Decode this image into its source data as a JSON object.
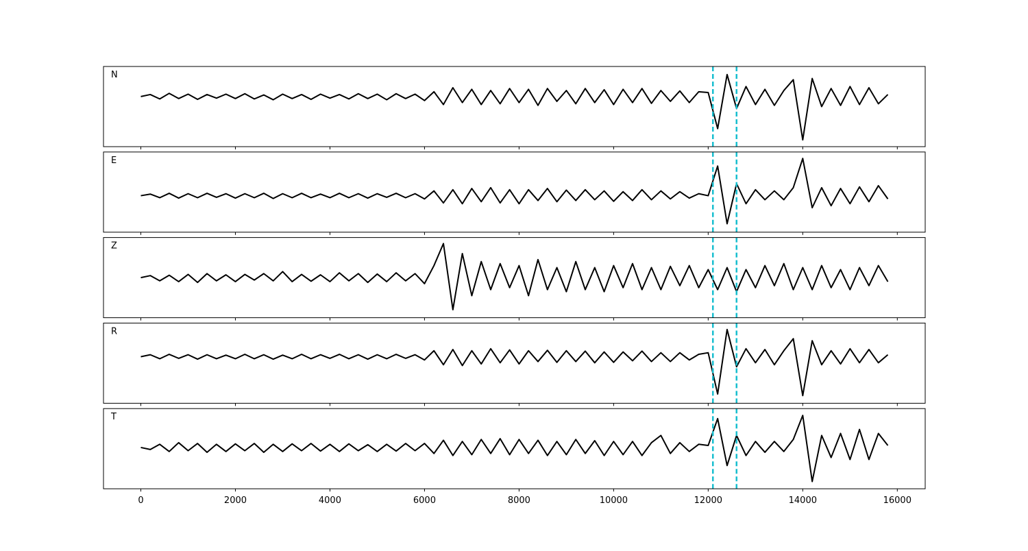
{
  "chart_data": {
    "type": "line",
    "color": "#000000",
    "xlim": [
      -790,
      16590
    ],
    "xticks": [
      0,
      2000,
      4000,
      6000,
      8000,
      10000,
      12000,
      14000,
      16000
    ],
    "markers": {
      "color": "#17becf",
      "x": [
        12100,
        12600
      ]
    },
    "x": [
      0,
      200,
      400,
      600,
      800,
      1000,
      1200,
      1400,
      1600,
      1800,
      2000,
      2200,
      2400,
      2600,
      2800,
      3000,
      3200,
      3400,
      3600,
      3800,
      4000,
      4200,
      4400,
      4600,
      4800,
      5000,
      5200,
      5400,
      5600,
      5800,
      6000,
      6200,
      6400,
      6600,
      6800,
      7000,
      7200,
      7400,
      7600,
      7800,
      8000,
      8200,
      8400,
      8600,
      8800,
      9000,
      9200,
      9400,
      9600,
      9800,
      10000,
      10200,
      10400,
      10600,
      10800,
      11000,
      11200,
      11400,
      11600,
      11800,
      12000,
      12200,
      12400,
      12600,
      12800,
      13000,
      13200,
      13400,
      13600,
      13800,
      14000,
      14200,
      14400,
      14600,
      14800,
      15000,
      15200,
      15400,
      15600,
      15800
    ],
    "series": [
      {
        "name": "N",
        "ylim": [
          -1.25,
          0.75
        ],
        "values": [
          0,
          0.05,
          -0.06,
          0.08,
          -0.05,
          0.06,
          -0.07,
          0.05,
          -0.04,
          0.06,
          -0.05,
          0.07,
          -0.06,
          0.04,
          -0.08,
          0.06,
          -0.05,
          0.05,
          -0.07,
          0.06,
          -0.04,
          0.05,
          -0.06,
          0.07,
          -0.05,
          0.06,
          -0.08,
          0.07,
          -0.05,
          0.06,
          -0.1,
          0.12,
          -0.2,
          0.22,
          -0.15,
          0.18,
          -0.2,
          0.15,
          -0.18,
          0.2,
          -0.15,
          0.18,
          -0.22,
          0.2,
          -0.12,
          0.15,
          -0.18,
          0.2,
          -0.15,
          0.17,
          -0.2,
          0.18,
          -0.15,
          0.2,
          -0.17,
          0.15,
          -0.12,
          0.14,
          -0.15,
          0.12,
          0.1,
          -0.8,
          0.55,
          -0.3,
          0.25,
          -0.2,
          0.18,
          -0.22,
          0.15,
          0.42,
          -1.08,
          0.45,
          -0.25,
          0.2,
          -0.22,
          0.25,
          -0.2,
          0.22,
          -0.18,
          0.05
        ]
      },
      {
        "name": "E",
        "ylim": [
          -0.91,
          1.09
        ],
        "values": [
          0,
          0.04,
          -0.05,
          0.06,
          -0.06,
          0.05,
          -0.05,
          0.06,
          -0.04,
          0.05,
          -0.06,
          0.05,
          -0.05,
          0.06,
          -0.07,
          0.05,
          -0.05,
          0.06,
          -0.05,
          0.04,
          -0.05,
          0.06,
          -0.05,
          0.05,
          -0.06,
          0.05,
          -0.04,
          0.06,
          -0.05,
          0.05,
          -0.08,
          0.12,
          -0.18,
          0.15,
          -0.2,
          0.18,
          -0.15,
          0.2,
          -0.18,
          0.15,
          -0.2,
          0.15,
          -0.12,
          0.18,
          -0.15,
          0.14,
          -0.12,
          0.15,
          -0.1,
          0.12,
          -0.14,
          0.1,
          -0.12,
          0.15,
          -0.1,
          0.12,
          -0.08,
          0.1,
          -0.06,
          0.05,
          0.0,
          0.74,
          -0.7,
          0.3,
          -0.2,
          0.15,
          -0.1,
          0.12,
          -0.1,
          0.2,
          0.93,
          -0.3,
          0.2,
          -0.25,
          0.18,
          -0.2,
          0.22,
          -0.15,
          0.25,
          -0.08
        ]
      },
      {
        "name": "Z",
        "ylim": [
          -1,
          1
        ],
        "values": [
          0,
          0.05,
          -0.08,
          0.06,
          -0.1,
          0.08,
          -0.12,
          0.1,
          -0.08,
          0.07,
          -0.1,
          0.08,
          -0.06,
          0.1,
          -0.08,
          0.15,
          -0.1,
          0.08,
          -0.09,
          0.07,
          -0.1,
          0.12,
          -0.08,
          0.1,
          -0.12,
          0.09,
          -0.1,
          0.12,
          -0.08,
          0.1,
          -0.15,
          0.3,
          0.85,
          -0.8,
          0.6,
          -0.45,
          0.4,
          -0.3,
          0.35,
          -0.25,
          0.3,
          -0.45,
          0.45,
          -0.3,
          0.25,
          -0.35,
          0.4,
          -0.3,
          0.25,
          -0.35,
          0.3,
          -0.25,
          0.35,
          -0.3,
          0.25,
          -0.3,
          0.28,
          -0.2,
          0.3,
          -0.25,
          0.2,
          -0.3,
          0.25,
          -0.35,
          0.2,
          -0.25,
          0.3,
          -0.2,
          0.35,
          -0.3,
          0.25,
          -0.3,
          0.3,
          -0.25,
          0.2,
          -0.3,
          0.25,
          -0.2,
          0.3,
          -0.1
        ]
      },
      {
        "name": "R",
        "ylim": [
          -1.16,
          0.84
        ],
        "values": [
          0,
          0.05,
          -0.05,
          0.06,
          -0.04,
          0.05,
          -0.06,
          0.05,
          -0.05,
          0.04,
          -0.05,
          0.06,
          -0.05,
          0.05,
          -0.06,
          0.04,
          -0.05,
          0.06,
          -0.05,
          0.05,
          -0.04,
          0.06,
          -0.05,
          0.05,
          -0.06,
          0.05,
          -0.05,
          0.06,
          -0.04,
          0.05,
          -0.08,
          0.15,
          -0.2,
          0.18,
          -0.22,
          0.15,
          -0.18,
          0.2,
          -0.15,
          0.17,
          -0.18,
          0.15,
          -0.12,
          0.16,
          -0.14,
          0.15,
          -0.12,
          0.14,
          -0.15,
          0.12,
          -0.14,
          0.12,
          -0.1,
          0.14,
          -0.12,
          0.1,
          -0.12,
          0.1,
          -0.08,
          0.06,
          0.1,
          -0.93,
          0.68,
          -0.25,
          0.2,
          -0.15,
          0.18,
          -0.2,
          0.15,
          0.45,
          -0.97,
          0.4,
          -0.2,
          0.15,
          -0.18,
          0.2,
          -0.15,
          0.18,
          -0.15,
          0.05
        ]
      },
      {
        "name": "T",
        "ylim": [
          -1.03,
          0.97
        ],
        "values": [
          0,
          -0.05,
          0.08,
          -0.1,
          0.12,
          -0.08,
          0.1,
          -0.12,
          0.08,
          -0.1,
          0.09,
          -0.08,
          0.1,
          -0.12,
          0.08,
          -0.1,
          0.09,
          -0.08,
          0.1,
          -0.09,
          0.08,
          -0.1,
          0.09,
          -0.08,
          0.07,
          -0.1,
          0.08,
          -0.09,
          0.1,
          -0.08,
          0.1,
          -0.15,
          0.18,
          -0.2,
          0.15,
          -0.18,
          0.2,
          -0.15,
          0.22,
          -0.18,
          0.2,
          -0.15,
          0.18,
          -0.2,
          0.15,
          -0.18,
          0.2,
          -0.15,
          0.17,
          -0.2,
          0.15,
          -0.18,
          0.15,
          -0.2,
          0.12,
          0.3,
          -0.15,
          0.12,
          -0.1,
          0.08,
          0.05,
          0.72,
          -0.45,
          0.3,
          -0.2,
          0.15,
          -0.12,
          0.15,
          -0.1,
          0.2,
          0.8,
          -0.85,
          0.3,
          -0.25,
          0.35,
          -0.3,
          0.45,
          -0.3,
          0.35,
          0.05
        ]
      }
    ]
  }
}
